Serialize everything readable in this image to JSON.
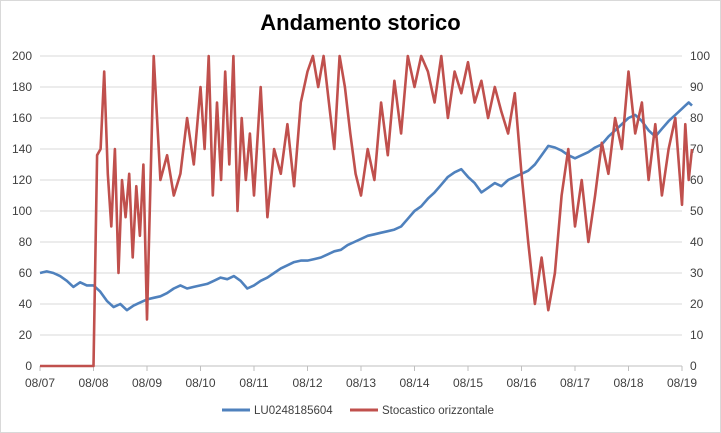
{
  "chart_data": {
    "type": "line",
    "title": "Andamento storico",
    "xlabel": "",
    "ylabel": "",
    "x_ticks": [
      "08/07",
      "08/08",
      "08/09",
      "08/10",
      "08/11",
      "08/12",
      "08/13",
      "08/14",
      "08/15",
      "08/16",
      "08/17",
      "08/18",
      "08/19"
    ],
    "y_left": {
      "min": 0,
      "max": 200,
      "ticks": [
        0,
        20,
        40,
        60,
        80,
        100,
        120,
        140,
        160,
        180,
        200
      ]
    },
    "y_right": {
      "min": 0,
      "max": 100,
      "ticks": [
        0,
        10,
        20,
        30,
        40,
        50,
        60,
        70,
        80,
        90,
        100
      ]
    },
    "grid": "horizontal",
    "legend_position": "bottom",
    "series": [
      {
        "name": "LU0248185604",
        "axis": "left",
        "color": "#4f81bd",
        "points": [
          [
            "08/07",
            60
          ],
          [
            "08/07",
            61
          ],
          [
            "08/07",
            60
          ],
          [
            "08/07",
            58
          ],
          [
            "08/07",
            55
          ],
          [
            "08/07",
            51
          ],
          [
            "08/07",
            54
          ],
          [
            "08/07",
            52
          ],
          [
            "08/08",
            52
          ],
          [
            "08/08",
            48
          ],
          [
            "08/08",
            42
          ],
          [
            "08/08",
            38
          ],
          [
            "08/08",
            40
          ],
          [
            "08/08",
            36
          ],
          [
            "08/08",
            39
          ],
          [
            "08/08",
            41
          ],
          [
            "08/09",
            43
          ],
          [
            "08/09",
            44
          ],
          [
            "08/09",
            45
          ],
          [
            "08/09",
            47
          ],
          [
            "08/09",
            50
          ],
          [
            "08/09",
            52
          ],
          [
            "08/09",
            50
          ],
          [
            "08/09",
            51
          ],
          [
            "08/10",
            52
          ],
          [
            "08/10",
            53
          ],
          [
            "08/10",
            55
          ],
          [
            "08/10",
            57
          ],
          [
            "08/10",
            56
          ],
          [
            "08/10",
            58
          ],
          [
            "08/10",
            55
          ],
          [
            "08/10",
            50
          ],
          [
            "08/11",
            52
          ],
          [
            "08/11",
            55
          ],
          [
            "08/11",
            57
          ],
          [
            "08/11",
            60
          ],
          [
            "08/11",
            63
          ],
          [
            "08/11",
            65
          ],
          [
            "08/11",
            67
          ],
          [
            "08/11",
            68
          ],
          [
            "08/12",
            68
          ],
          [
            "08/12",
            69
          ],
          [
            "08/12",
            70
          ],
          [
            "08/12",
            72
          ],
          [
            "08/12",
            74
          ],
          [
            "08/12",
            75
          ],
          [
            "08/12",
            78
          ],
          [
            "08/12",
            80
          ],
          [
            "08/13",
            82
          ],
          [
            "08/13",
            84
          ],
          [
            "08/13",
            85
          ],
          [
            "08/13",
            86
          ],
          [
            "08/13",
            87
          ],
          [
            "08/13",
            88
          ],
          [
            "08/13",
            90
          ],
          [
            "08/13",
            95
          ],
          [
            "08/14",
            100
          ],
          [
            "08/14",
            103
          ],
          [
            "08/14",
            108
          ],
          [
            "08/14",
            112
          ],
          [
            "08/14",
            117
          ],
          [
            "08/14",
            122
          ],
          [
            "08/14",
            125
          ],
          [
            "08/14",
            127
          ],
          [
            "08/15",
            122
          ],
          [
            "08/15",
            118
          ],
          [
            "08/15",
            112
          ],
          [
            "08/15",
            115
          ],
          [
            "08/15",
            118
          ],
          [
            "08/15",
            116
          ],
          [
            "08/15",
            120
          ],
          [
            "08/15",
            122
          ],
          [
            "08/16",
            124
          ],
          [
            "08/16",
            126
          ],
          [
            "08/16",
            130
          ],
          [
            "08/16",
            136
          ],
          [
            "08/16",
            142
          ],
          [
            "08/16",
            141
          ],
          [
            "08/16",
            139
          ],
          [
            "08/16",
            136
          ],
          [
            "08/17",
            134
          ],
          [
            "08/17",
            136
          ],
          [
            "08/17",
            138
          ],
          [
            "08/17",
            141
          ],
          [
            "08/17",
            143
          ],
          [
            "08/17",
            148
          ],
          [
            "08/17",
            152
          ],
          [
            "08/17",
            156
          ],
          [
            "08/18",
            160
          ],
          [
            "08/18",
            162
          ],
          [
            "08/18",
            158
          ],
          [
            "08/18",
            152
          ],
          [
            "08/18",
            148
          ],
          [
            "08/18",
            153
          ],
          [
            "08/18",
            158
          ],
          [
            "08/18",
            162
          ],
          [
            "08/19",
            166
          ],
          [
            "08/19",
            168
          ],
          [
            "08/19",
            170
          ],
          [
            "08/19",
            168
          ]
        ]
      },
      {
        "name": "Stocastico orizzontale",
        "axis": "right",
        "color": "#c0504d",
        "points": [
          [
            "08/07",
            0
          ],
          [
            "08/07",
            0
          ],
          [
            "08/07",
            0
          ],
          [
            "08/07",
            0
          ],
          [
            "08/07",
            0
          ],
          [
            "08/07",
            0
          ],
          [
            "08/07",
            0
          ],
          [
            "08/08",
            0
          ],
          [
            "08/08",
            68
          ],
          [
            "08/08",
            70
          ],
          [
            "08/08",
            95
          ],
          [
            "08/08",
            62
          ],
          [
            "08/08",
            45
          ],
          [
            "08/08",
            70
          ],
          [
            "08/08",
            30
          ],
          [
            "08/08",
            60
          ],
          [
            "08/08",
            48
          ],
          [
            "08/08",
            62
          ],
          [
            "08/08",
            35
          ],
          [
            "08/08",
            58
          ],
          [
            "08/08",
            42
          ],
          [
            "08/08",
            65
          ],
          [
            "08/09",
            15
          ],
          [
            "08/09",
            100
          ],
          [
            "08/09",
            60
          ],
          [
            "08/09",
            68
          ],
          [
            "08/09",
            55
          ],
          [
            "08/09",
            62
          ],
          [
            "08/09",
            80
          ],
          [
            "08/09",
            65
          ],
          [
            "08/10",
            90
          ],
          [
            "08/10",
            70
          ],
          [
            "08/10",
            100
          ],
          [
            "08/10",
            55
          ],
          [
            "08/10",
            85
          ],
          [
            "08/10",
            60
          ],
          [
            "08/10",
            95
          ],
          [
            "08/10",
            65
          ],
          [
            "08/10",
            100
          ],
          [
            "08/10",
            50
          ],
          [
            "08/10",
            80
          ],
          [
            "08/10",
            60
          ],
          [
            "08/10",
            75
          ],
          [
            "08/11",
            55
          ],
          [
            "08/11",
            90
          ],
          [
            "08/11",
            48
          ],
          [
            "08/11",
            70
          ],
          [
            "08/11",
            62
          ],
          [
            "08/11",
            78
          ],
          [
            "08/11",
            58
          ],
          [
            "08/11",
            85
          ],
          [
            "08/12",
            95
          ],
          [
            "08/12",
            100
          ],
          [
            "08/12",
            90
          ],
          [
            "08/12",
            100
          ],
          [
            "08/12",
            85
          ],
          [
            "08/12",
            70
          ],
          [
            "08/12",
            100
          ],
          [
            "08/12",
            90
          ],
          [
            "08/12",
            75
          ],
          [
            "08/12",
            62
          ],
          [
            "08/13",
            55
          ],
          [
            "08/13",
            70
          ],
          [
            "08/13",
            60
          ],
          [
            "08/13",
            85
          ],
          [
            "08/13",
            68
          ],
          [
            "08/13",
            92
          ],
          [
            "08/13",
            75
          ],
          [
            "08/13",
            100
          ],
          [
            "08/14",
            90
          ],
          [
            "08/14",
            100
          ],
          [
            "08/14",
            95
          ],
          [
            "08/14",
            85
          ],
          [
            "08/14",
            100
          ],
          [
            "08/14",
            80
          ],
          [
            "08/14",
            95
          ],
          [
            "08/14",
            88
          ],
          [
            "08/15",
            98
          ],
          [
            "08/15",
            85
          ],
          [
            "08/15",
            92
          ],
          [
            "08/15",
            80
          ],
          [
            "08/15",
            90
          ],
          [
            "08/15",
            82
          ],
          [
            "08/15",
            75
          ],
          [
            "08/15",
            88
          ],
          [
            "08/16",
            62
          ],
          [
            "08/16",
            40
          ],
          [
            "08/16",
            20
          ],
          [
            "08/16",
            35
          ],
          [
            "08/16",
            18
          ],
          [
            "08/16",
            30
          ],
          [
            "08/16",
            55
          ],
          [
            "08/16",
            70
          ],
          [
            "08/17",
            45
          ],
          [
            "08/17",
            60
          ],
          [
            "08/17",
            40
          ],
          [
            "08/17",
            55
          ],
          [
            "08/17",
            72
          ],
          [
            "08/17",
            62
          ],
          [
            "08/17",
            80
          ],
          [
            "08/17",
            70
          ],
          [
            "08/18",
            95
          ],
          [
            "08/18",
            75
          ],
          [
            "08/18",
            85
          ],
          [
            "08/18",
            60
          ],
          [
            "08/18",
            78
          ],
          [
            "08/18",
            55
          ],
          [
            "08/18",
            70
          ],
          [
            "08/18",
            80
          ],
          [
            "08/19",
            52
          ],
          [
            "08/19",
            78
          ],
          [
            "08/19",
            60
          ],
          [
            "08/19",
            70
          ]
        ]
      }
    ]
  }
}
